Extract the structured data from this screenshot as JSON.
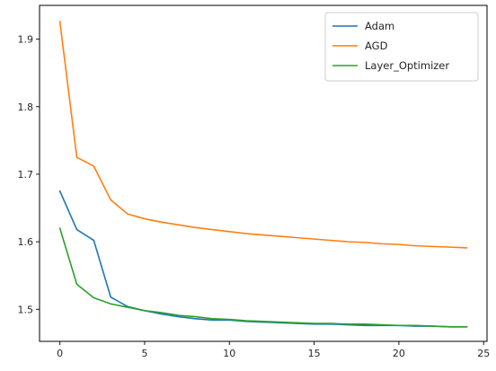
{
  "chart_data": {
    "type": "line",
    "title": "",
    "xlabel": "",
    "ylabel": "",
    "xlim": [
      -1.2,
      25.2
    ],
    "ylim": [
      1.4525,
      1.95
    ],
    "xticks": [
      0,
      5,
      10,
      15,
      20,
      25
    ],
    "yticks": [
      1.5,
      1.6,
      1.7,
      1.8,
      1.9
    ],
    "grid": false,
    "legend": "top-right",
    "x": [
      0,
      1,
      2,
      3,
      4,
      5,
      6,
      7,
      8,
      9,
      10,
      11,
      12,
      13,
      14,
      15,
      16,
      17,
      18,
      19,
      20,
      21,
      22,
      23,
      24
    ],
    "series": [
      {
        "name": "Adam",
        "color": "#1f77b4",
        "values": [
          1.675,
          1.618,
          1.602,
          1.518,
          1.504,
          1.498,
          1.493,
          1.489,
          1.486,
          1.484,
          1.484,
          1.482,
          1.481,
          1.48,
          1.479,
          1.478,
          1.478,
          1.477,
          1.476,
          1.476,
          1.476,
          1.475,
          1.475,
          1.474,
          1.474
        ]
      },
      {
        "name": "AGD",
        "color": "#ff7f0e",
        "values": [
          1.926,
          1.725,
          1.712,
          1.662,
          1.641,
          1.634,
          1.629,
          1.625,
          1.621,
          1.618,
          1.615,
          1.612,
          1.61,
          1.608,
          1.606,
          1.604,
          1.602,
          1.6,
          1.599,
          1.597,
          1.596,
          1.594,
          1.593,
          1.592,
          1.591
        ]
      },
      {
        "name": "Layer_Optimizer",
        "color": "#2ca02c",
        "values": [
          1.62,
          1.537,
          1.517,
          1.508,
          1.503,
          1.498,
          1.495,
          1.491,
          1.489,
          1.486,
          1.485,
          1.483,
          1.482,
          1.481,
          1.48,
          1.479,
          1.479,
          1.478,
          1.478,
          1.477,
          1.476,
          1.476,
          1.475,
          1.474,
          1.474
        ]
      }
    ]
  }
}
